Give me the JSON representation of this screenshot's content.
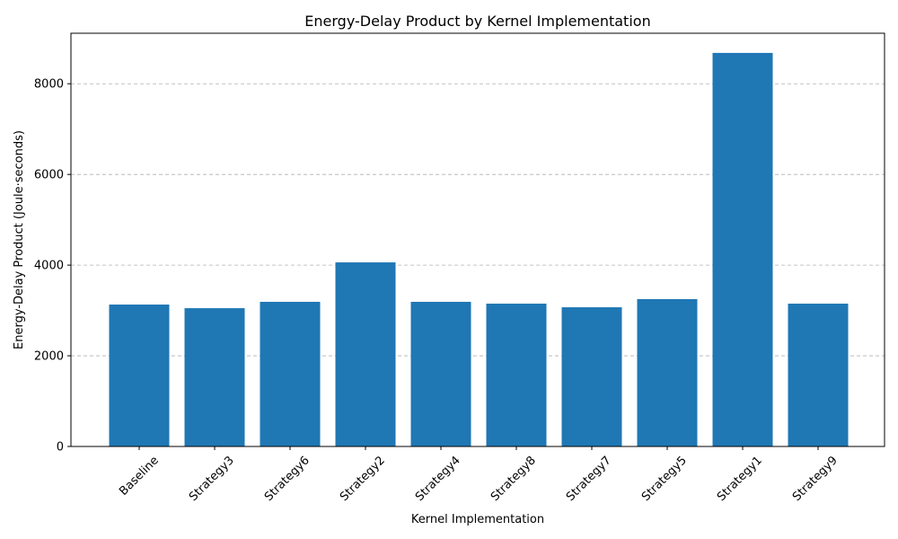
{
  "chart_data": {
    "type": "bar",
    "title": "Energy-Delay Product by Kernel Implementation",
    "xlabel": "Kernel Implementation",
    "ylabel": "Energy-Delay Product (Joule·seconds)",
    "categories": [
      "Baseline",
      "Strategy3",
      "Strategy6",
      "Strategy2",
      "Strategy4",
      "Strategy8",
      "Strategy7",
      "Strategy5",
      "Strategy1",
      "Strategy9"
    ],
    "values": [
      3130,
      3050,
      3190,
      4060,
      3190,
      3150,
      3070,
      3250,
      8680,
      3150
    ],
    "ylim": [
      0,
      9114
    ],
    "yticks": [
      0,
      2000,
      4000,
      6000,
      8000
    ],
    "ytick_labels": [
      "0",
      "2000",
      "4000",
      "6000",
      "8000"
    ],
    "grid": "y",
    "bar_color": "#1f77b4"
  }
}
